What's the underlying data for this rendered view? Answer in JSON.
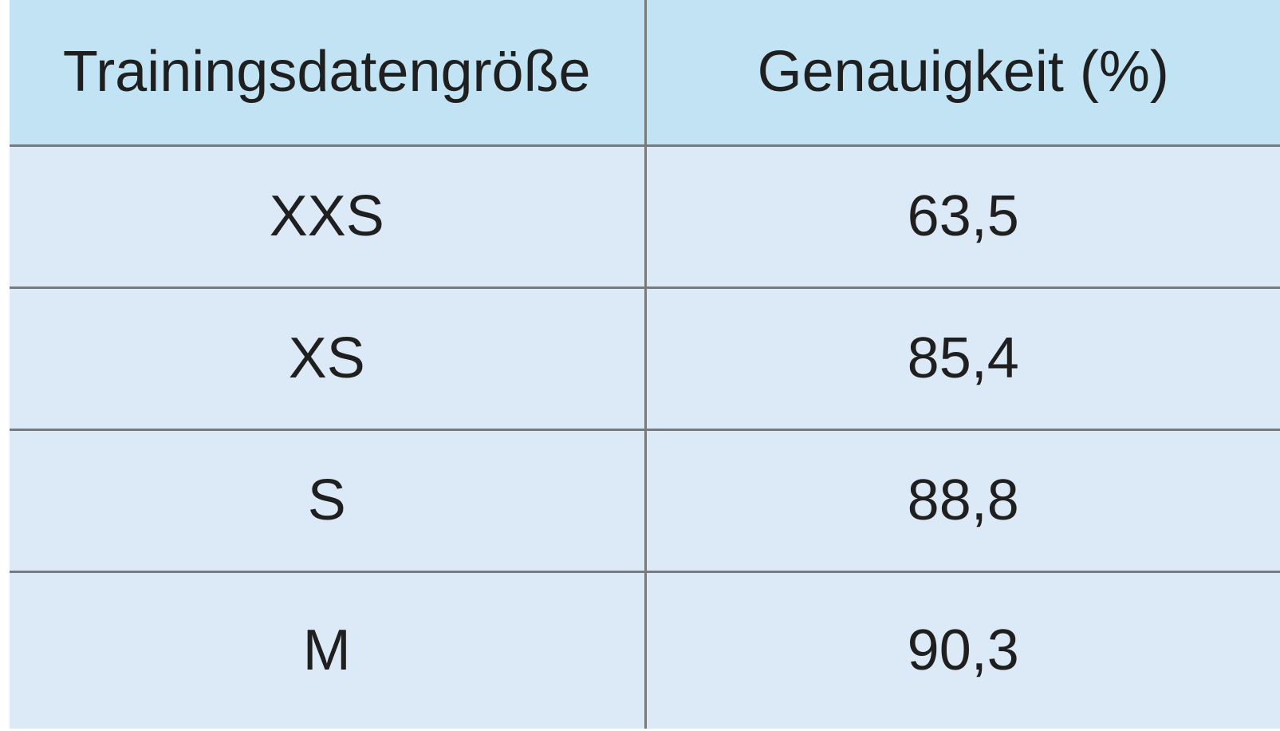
{
  "table": {
    "headers": [
      "Trainingsdatengröße",
      "Genauigkeit (%)"
    ],
    "rows": [
      [
        "XXS",
        "63,5"
      ],
      [
        "XS",
        "85,4"
      ],
      [
        "S",
        "88,8"
      ],
      [
        "M",
        "90,3"
      ]
    ]
  },
  "colors": {
    "header_bg": "#c1e3f3",
    "row_bg": "#dce9f6",
    "grid_line": "#7a7a7a",
    "text": "#1f1f1f"
  }
}
